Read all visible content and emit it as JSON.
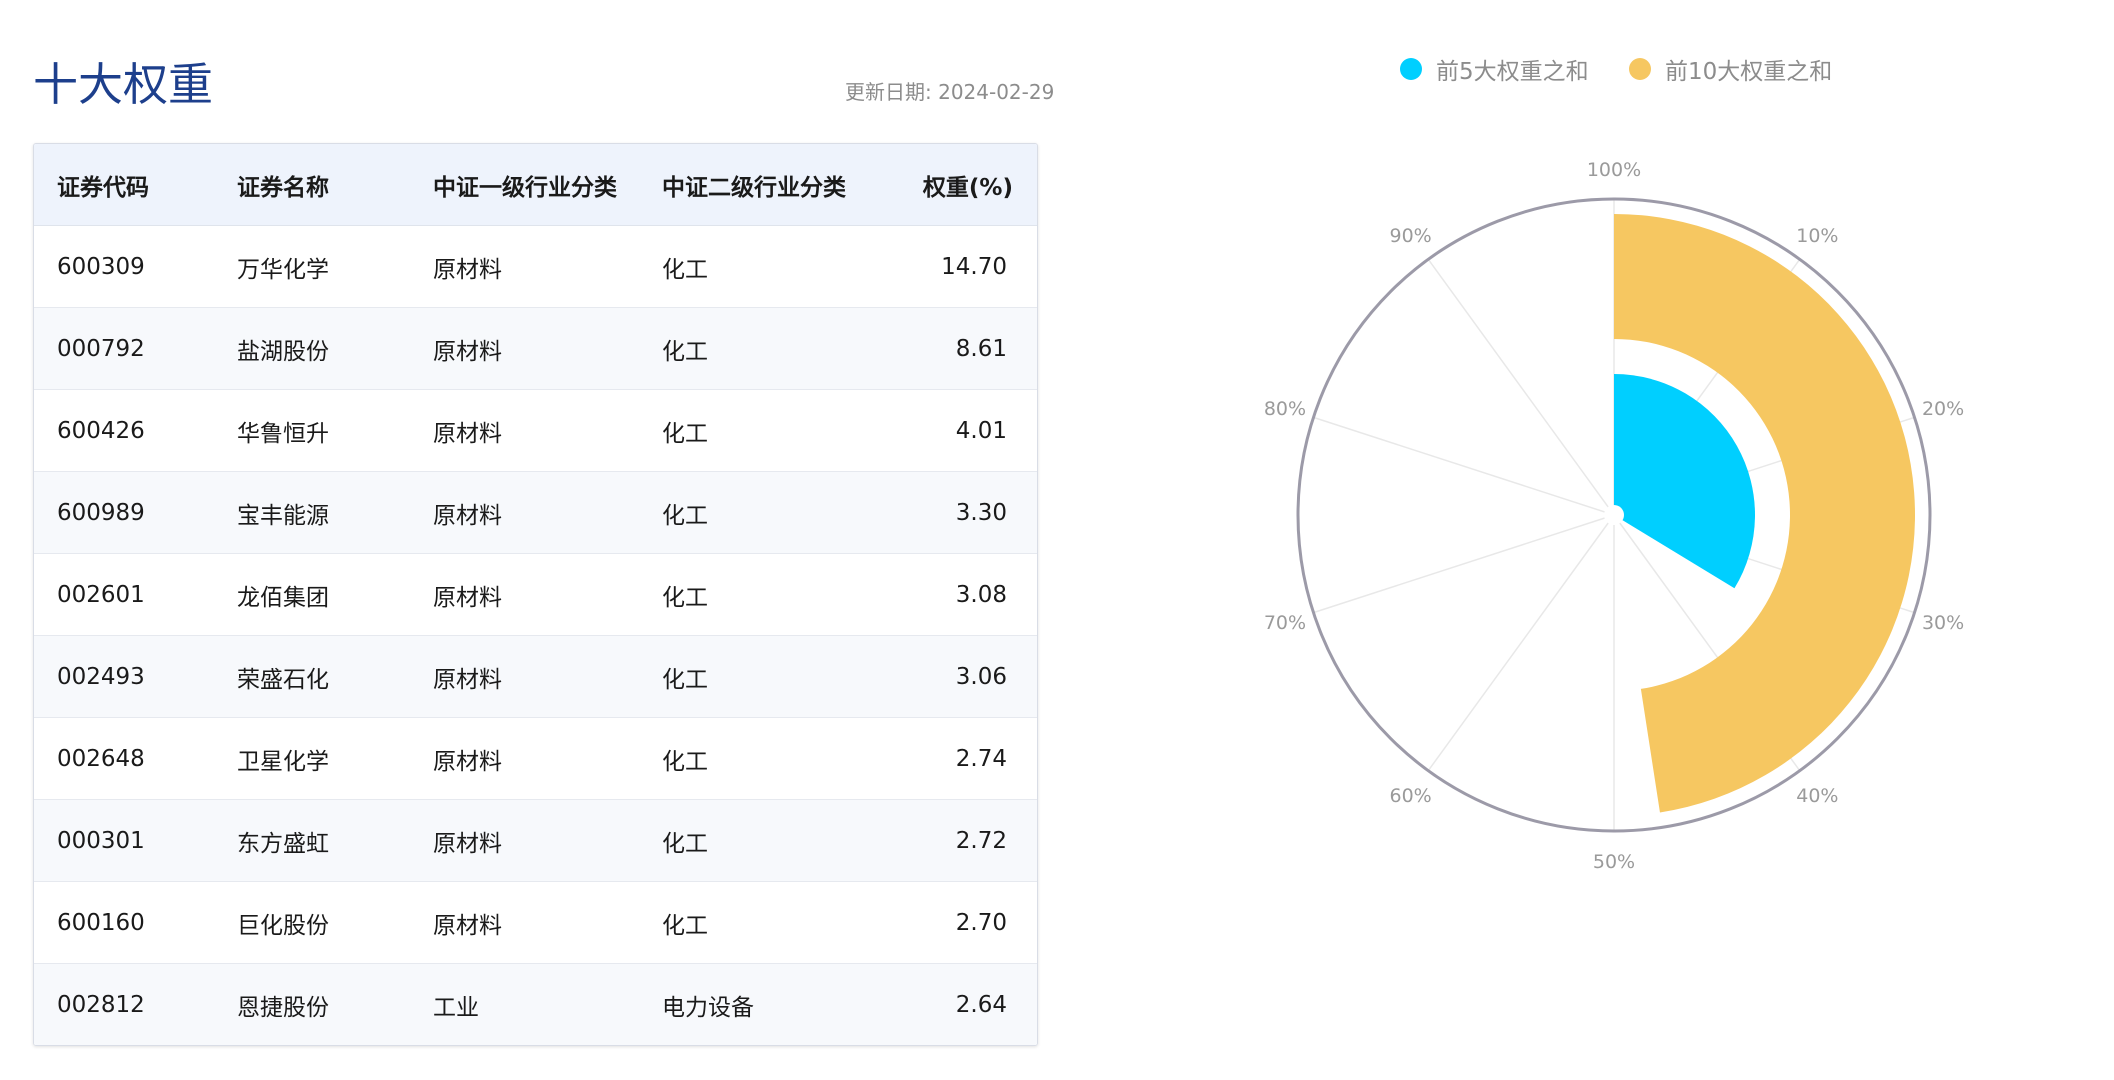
{
  "header": {
    "title": "十大权重",
    "update_label": "更新日期: 2024-02-29"
  },
  "table": {
    "columns": [
      "证券代码",
      "证券名称",
      "中证一级行业分类",
      "中证二级行业分类",
      "权重(%)"
    ],
    "rows": [
      [
        "600309",
        "万华化学",
        "原材料",
        "化工",
        "14.70"
      ],
      [
        "000792",
        "盐湖股份",
        "原材料",
        "化工",
        "8.61"
      ],
      [
        "600426",
        "华鲁恒升",
        "原材料",
        "化工",
        "4.01"
      ],
      [
        "600989",
        "宝丰能源",
        "原材料",
        "化工",
        "3.30"
      ],
      [
        "002601",
        "龙佰集团",
        "原材料",
        "化工",
        "3.08"
      ],
      [
        "002493",
        "荣盛石化",
        "原材料",
        "化工",
        "3.06"
      ],
      [
        "002648",
        "卫星化学",
        "原材料",
        "化工",
        "2.74"
      ],
      [
        "000301",
        "东方盛虹",
        "原材料",
        "化工",
        "2.72"
      ],
      [
        "600160",
        "巨化股份",
        "原材料",
        "化工",
        "2.70"
      ],
      [
        "002812",
        "恩捷股份",
        "工业",
        "电力设备",
        "2.64"
      ]
    ]
  },
  "chart_data": {
    "type": "polar-bar",
    "series": [
      {
        "name": "前5大权重之和",
        "value": 33.7,
        "color": "#00cfff"
      },
      {
        "name": "前10大权重之和",
        "value": 47.56,
        "color": "#f6c761"
      }
    ],
    "angle_axis": {
      "min": 0,
      "max": 100,
      "unit": "%",
      "ticks": [
        "100%",
        "10%",
        "20%",
        "30%",
        "40%",
        "50%",
        "60%",
        "70%",
        "80%",
        "90%"
      ]
    },
    "legend_position": "top"
  }
}
